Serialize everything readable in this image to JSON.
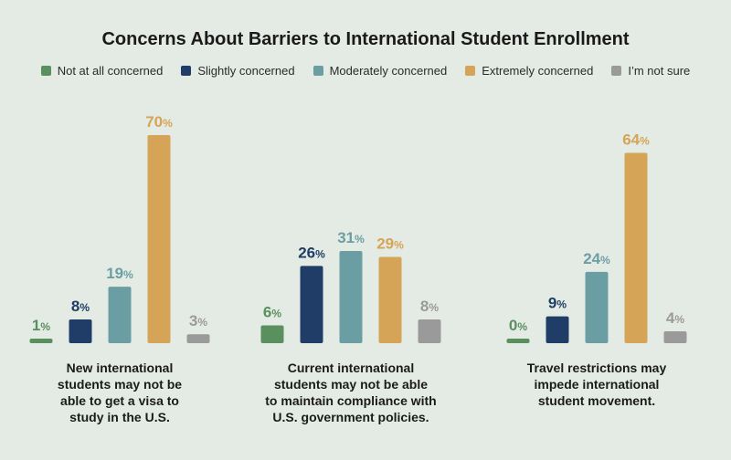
{
  "title": "Concerns About Barriers to International Student Enrollment",
  "legend": [
    {
      "label": "Not at all concerned",
      "color": "#5a8f5e"
    },
    {
      "label": "Slightly concerned",
      "color": "#1f3d66"
    },
    {
      "label": "Moderately concerned",
      "color": "#6b9ea3"
    },
    {
      "label": "Extremely concerned",
      "color": "#d5a456"
    },
    {
      "label": "I’m not sure",
      "color": "#9a9a9a"
    }
  ],
  "chart_data": {
    "type": "bar",
    "title": "Concerns About Barriers to International Student Enrollment",
    "categories": [
      "New international students may not be able to get a visa to study in the U.S.",
      "Current international students may not be able to maintain compliance with U.S. government policies.",
      "Travel restrictions may impede international student movement."
    ],
    "category_lines": [
      [
        "New international",
        "students may not be",
        "able to get a visa to",
        "study in the U.S."
      ],
      [
        "Current international",
        "students may not be able",
        "to maintain compliance with",
        "U.S. government policies."
      ],
      [
        "Travel restrictions may",
        "impede international",
        "student movement."
      ]
    ],
    "series": [
      {
        "name": "Not at all concerned",
        "values": [
          1,
          6,
          0
        ]
      },
      {
        "name": "Slightly concerned",
        "values": [
          8,
          26,
          9
        ]
      },
      {
        "name": "Moderately concerned",
        "values": [
          19,
          31,
          24
        ]
      },
      {
        "name": "Extremely concerned",
        "values": [
          70,
          29,
          64
        ]
      },
      {
        "name": "I’m not sure",
        "values": [
          3,
          8,
          4
        ]
      }
    ],
    "value_suffix": "%",
    "ylim": [
      0,
      70
    ],
    "grid": false,
    "legend_position": "top"
  }
}
